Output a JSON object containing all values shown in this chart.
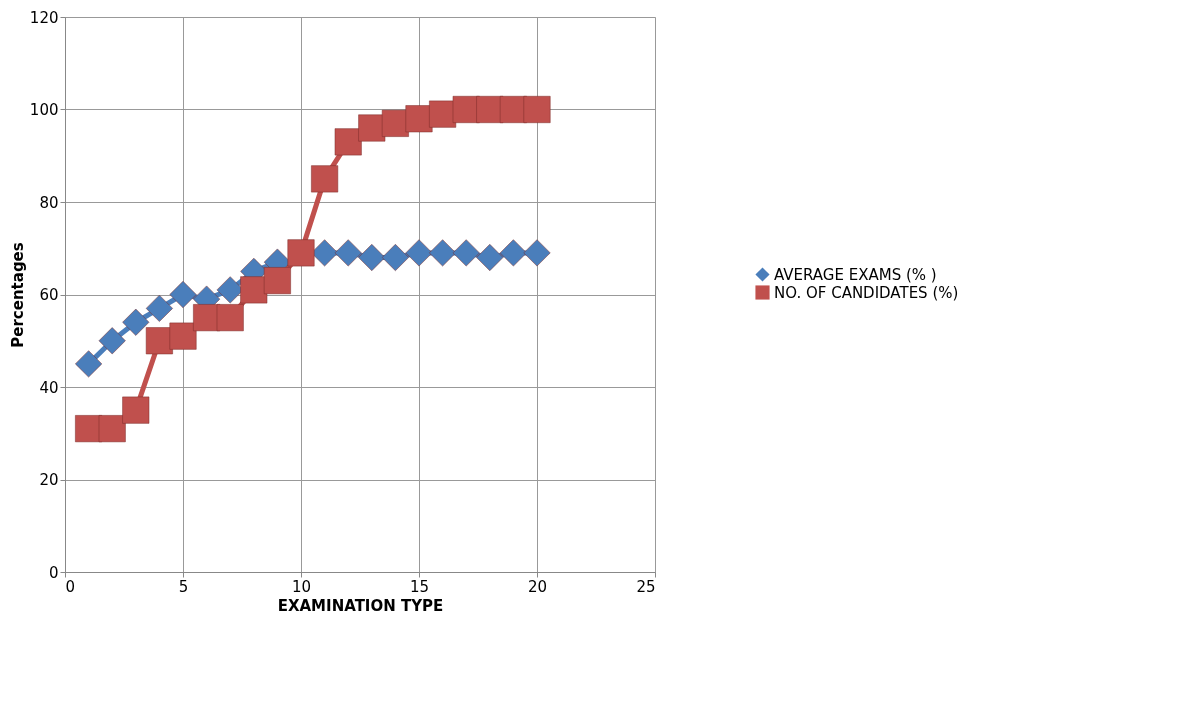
{
  "chart_data": {
    "type": "line",
    "xlabel": "EXAMINATION  TYPE",
    "ylabel": "Percentages",
    "x": [
      1,
      2,
      3,
      4,
      5,
      6,
      7,
      8,
      9,
      10,
      11,
      12,
      13,
      14,
      15,
      16,
      17,
      18,
      19,
      20
    ],
    "series": [
      {
        "name": "AVERAGE EXAMS (% )",
        "color": "#4a7ebb",
        "marker": "diamond",
        "values": [
          45,
          50,
          54,
          57,
          60,
          59,
          61,
          65,
          67,
          null,
          69,
          69,
          68,
          68,
          69,
          69,
          69,
          68,
          69,
          69
        ]
      },
      {
        "name": "NO. OF CANDIDATES (%)",
        "color": "#c0504d",
        "marker": "square",
        "values": [
          31,
          31,
          35,
          50,
          51,
          55,
          55,
          61,
          63,
          69,
          85,
          93,
          96,
          97,
          98,
          99,
          100,
          100,
          100,
          100
        ]
      }
    ],
    "xlim": [
      0,
      25
    ],
    "xticks": [
      0,
      5,
      10,
      15,
      20,
      25
    ],
    "ylim": [
      0,
      120
    ],
    "yticks": [
      0,
      20,
      40,
      60,
      80,
      100,
      120
    ],
    "grid": true,
    "legend": "right",
    "line_style": "solid"
  }
}
